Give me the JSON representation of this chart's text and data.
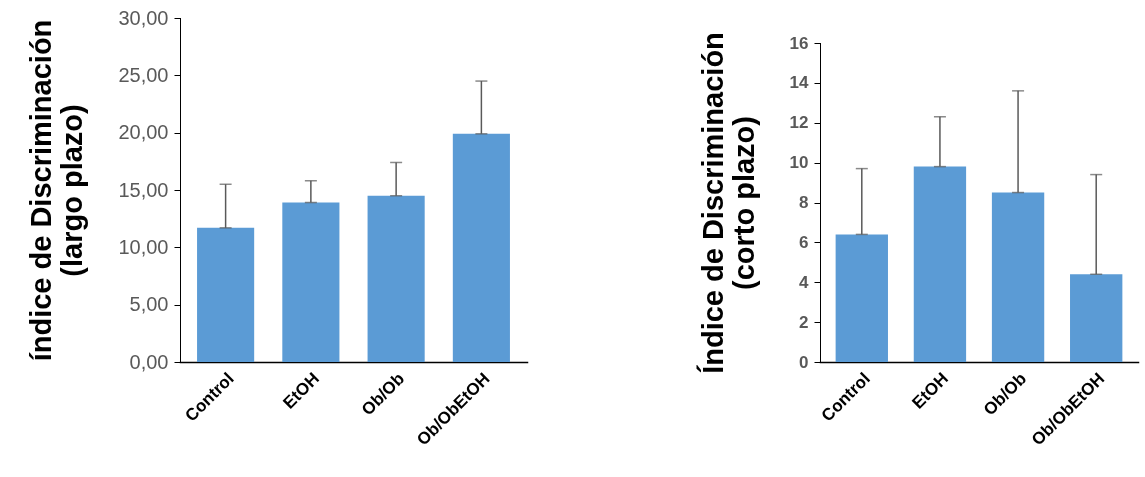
{
  "chart_data": [
    {
      "type": "bar",
      "ylabel": "índice de Discriminación\n(largo plazo)",
      "categories": [
        "Control",
        "EtOH",
        "Ob/Ob",
        "Ob/ObEtOH"
      ],
      "values": [
        11.7,
        13.9,
        14.5,
        19.9
      ],
      "errors": [
        [
          11.7,
          15.5
        ],
        [
          13.9,
          15.8
        ],
        [
          14.5,
          17.4
        ],
        [
          19.9,
          24.5
        ]
      ],
      "color": "#5b9bd5",
      "ylim": [
        0,
        30
      ],
      "yticks": [
        {
          "value": 0,
          "label": "0,00"
        },
        {
          "value": 5,
          "label": "5,00"
        },
        {
          "value": 10,
          "label": "10,00"
        },
        {
          "value": 15,
          "label": "15,00"
        },
        {
          "value": 20,
          "label": "20,00"
        },
        {
          "value": 25,
          "label": "25,00"
        },
        {
          "value": 30,
          "label": "30,00"
        }
      ],
      "grid": false
    },
    {
      "type": "bar",
      "ylabel": "Índice de Discriminación\n(corto plazo)",
      "categories": [
        "Control",
        "EtOH",
        "Ob/Ob",
        "Ob/ObEtOH"
      ],
      "values": [
        6.4,
        9.8,
        8.5,
        4.4
      ],
      "errors": [
        [
          6.4,
          9.7
        ],
        [
          9.8,
          12.3
        ],
        [
          8.5,
          13.6
        ],
        [
          4.4,
          9.4
        ]
      ],
      "color": "#5b9bd5",
      "ylim": [
        0,
        16
      ],
      "yticks": [
        0,
        2,
        4,
        6,
        8,
        10,
        12,
        14,
        16
      ],
      "grid": false
    }
  ]
}
